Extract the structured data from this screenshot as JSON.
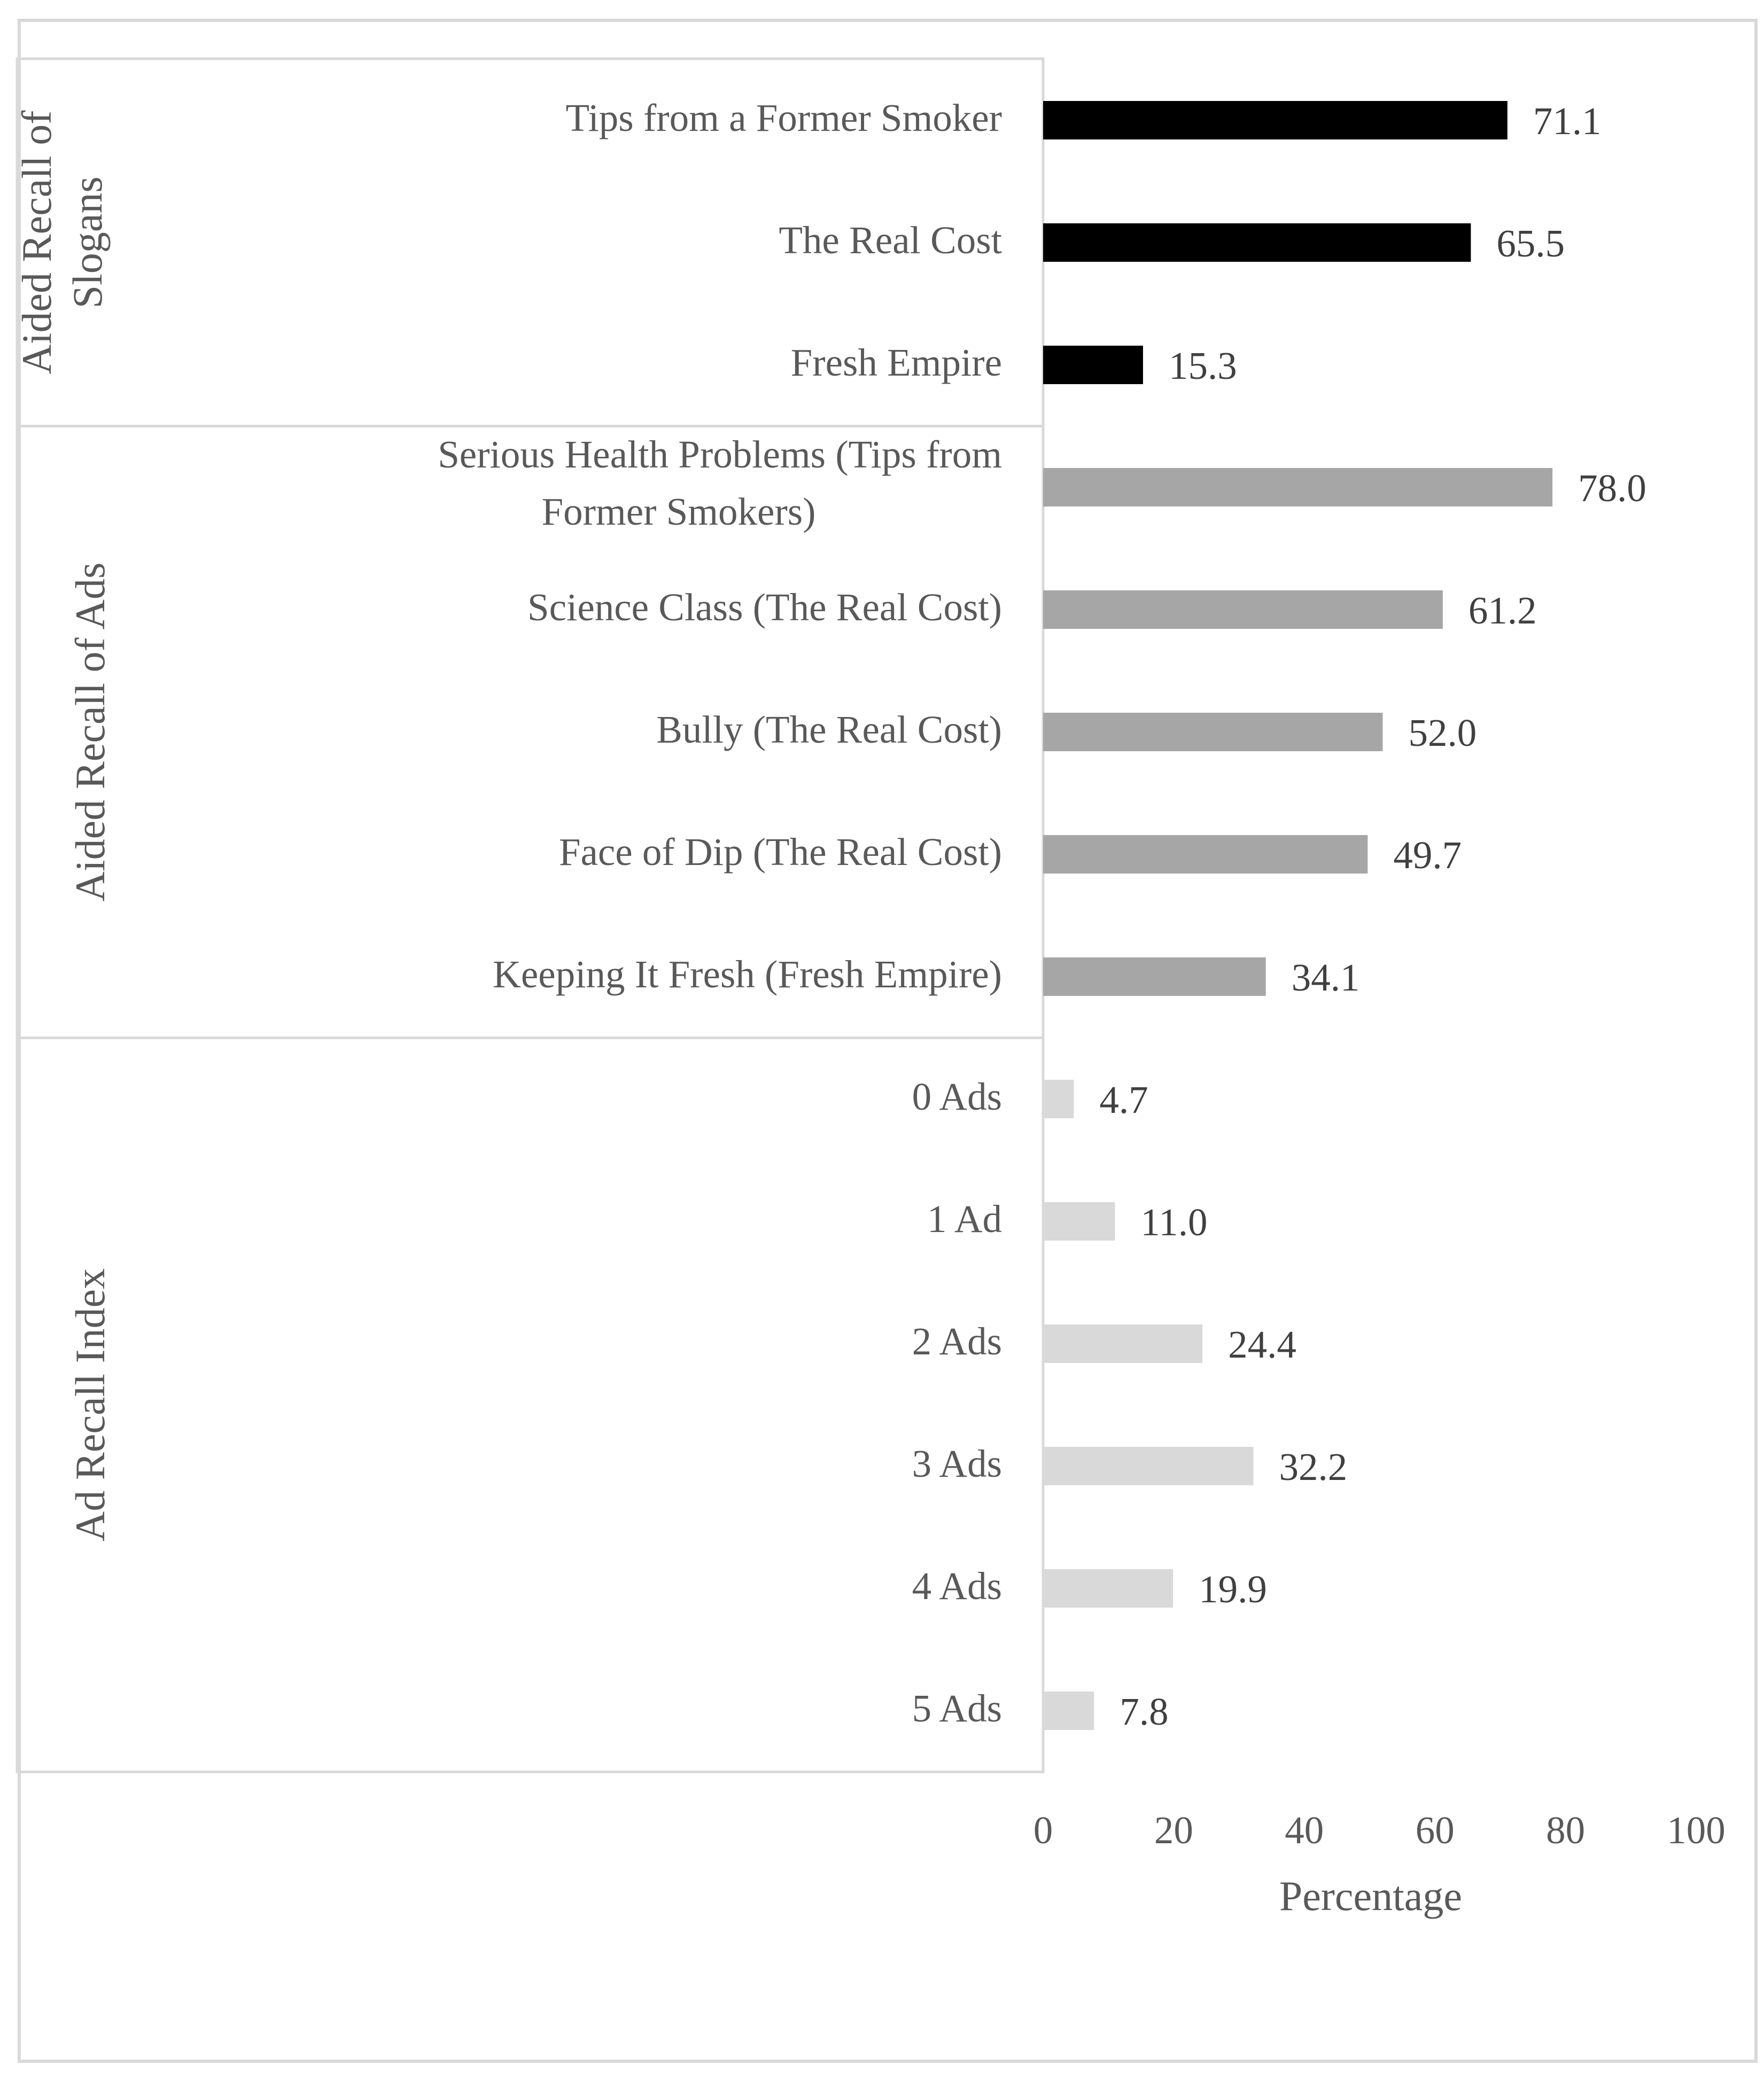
{
  "chart_data": {
    "type": "bar",
    "orientation": "horizontal",
    "xlabel": "Percentage",
    "ylabel": "",
    "xlim": [
      0,
      100
    ],
    "x_ticks": [
      "0",
      "20",
      "40",
      "60",
      "80",
      "100"
    ],
    "grid": false,
    "legend": "none",
    "groups": [
      {
        "name": "Aided Recall of Slogans",
        "color": "#000000",
        "categories": [
          "Tips from a Former Smoker",
          "The Real Cost",
          "Fresh Empire"
        ],
        "values": [
          71.1,
          65.5,
          15.3
        ],
        "value_labels": [
          "71.1",
          "65.5",
          "15.3"
        ]
      },
      {
        "name": "Aided Recall of Ads",
        "color": "#a6a6a6",
        "categories": [
          "Serious Health Problems (Tips from Former Smokers)",
          "Science Class (The Real Cost)",
          "Bully (The Real Cost)",
          "Face of Dip (The Real Cost)",
          "Keeping It Fresh (Fresh Empire)"
        ],
        "values": [
          78.0,
          61.2,
          52.0,
          49.7,
          34.1
        ],
        "value_labels": [
          "78.0",
          "61.2",
          "52.0",
          "49.7",
          "34.1"
        ]
      },
      {
        "name": "Ad Recall Index",
        "color": "#d9d9d9",
        "categories": [
          "0 Ads",
          "1 Ad",
          "2 Ads",
          "3 Ads",
          "4 Ads",
          "5 Ads"
        ],
        "values": [
          4.7,
          11.0,
          24.4,
          32.2,
          19.9,
          7.8
        ],
        "value_labels": [
          "4.7",
          "11.0",
          "24.4",
          "32.2",
          "19.9",
          "7.8"
        ]
      }
    ]
  }
}
